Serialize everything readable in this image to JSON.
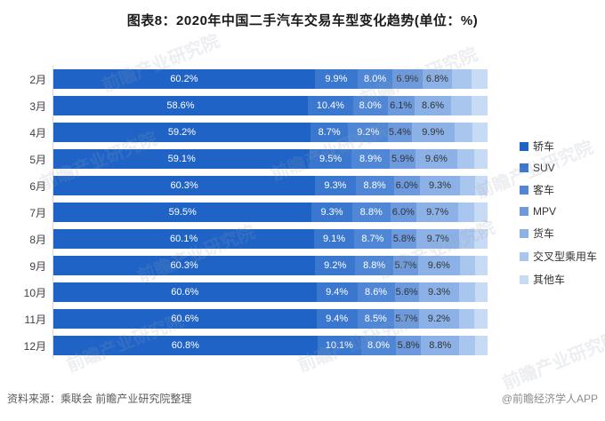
{
  "title": "图表8：2020年中国二手汽车交易车型变化趋势(单位：%)",
  "footer": {
    "source": "资料来源：乘联会 前瞻产业研究院整理",
    "brand": "@前瞻经济学人APP"
  },
  "watermark": {
    "text": "前瞻产业研究院"
  },
  "chart_data": {
    "type": "bar",
    "variant": "horizontal-stacked",
    "title": "图表8：2020年中国二手汽车交易车型变化趋势(单位：%)",
    "value_suffix": "%",
    "xlim": [
      0,
      100
    ],
    "grid": false,
    "legend_position": "right",
    "categories": [
      "2月",
      "3月",
      "4月",
      "5月",
      "6月",
      "7月",
      "8月",
      "9月",
      "10月",
      "11月",
      "12月"
    ],
    "series": [
      {
        "name": "轿车",
        "color": "#1f63c6",
        "labels_shown": true,
        "label_color": "#ffffff",
        "values": [
          60.2,
          58.6,
          59.2,
          59.1,
          60.3,
          59.5,
          60.1,
          60.3,
          60.6,
          60.6,
          60.8
        ]
      },
      {
        "name": "SUV",
        "color": "#3a77cf",
        "labels_shown": true,
        "label_color": "#ffffff",
        "values": [
          9.9,
          10.4,
          8.7,
          9.5,
          9.3,
          9.3,
          9.1,
          9.2,
          9.4,
          9.4,
          10.1
        ]
      },
      {
        "name": "客车",
        "color": "#4f87d6",
        "labels_shown": true,
        "label_color": "#ffffff",
        "values": [
          8.0,
          8.0,
          9.2,
          8.9,
          8.8,
          8.8,
          8.7,
          8.8,
          8.6,
          8.5,
          8.0
        ]
      },
      {
        "name": "MPV",
        "color": "#6c9add",
        "labels_shown": true,
        "label_color": "#333333",
        "values": [
          6.9,
          6.1,
          5.4,
          5.9,
          6.0,
          6.0,
          5.8,
          5.7,
          5.6,
          5.7,
          5.8
        ]
      },
      {
        "name": "货车",
        "color": "#8bb1e6",
        "labels_shown": true,
        "label_color": "#333333",
        "values": [
          6.8,
          8.6,
          9.9,
          9.6,
          9.3,
          9.7,
          9.7,
          9.6,
          9.3,
          9.2,
          8.8
        ]
      },
      {
        "name": "交叉型乘用车",
        "color": "#a9c6ee",
        "labels_shown": false,
        "label_color": "#333333",
        "values": [
          4.5,
          4.6,
          4.2,
          3.9,
          3.5,
          3.7,
          3.6,
          3.5,
          3.6,
          3.6,
          3.6
        ]
      },
      {
        "name": "其他车",
        "color": "#c7dbf5",
        "labels_shown": false,
        "label_color": "#333333",
        "values": [
          3.7,
          3.7,
          3.4,
          3.1,
          2.8,
          3.0,
          3.0,
          2.9,
          2.9,
          3.0,
          2.9
        ]
      }
    ]
  }
}
